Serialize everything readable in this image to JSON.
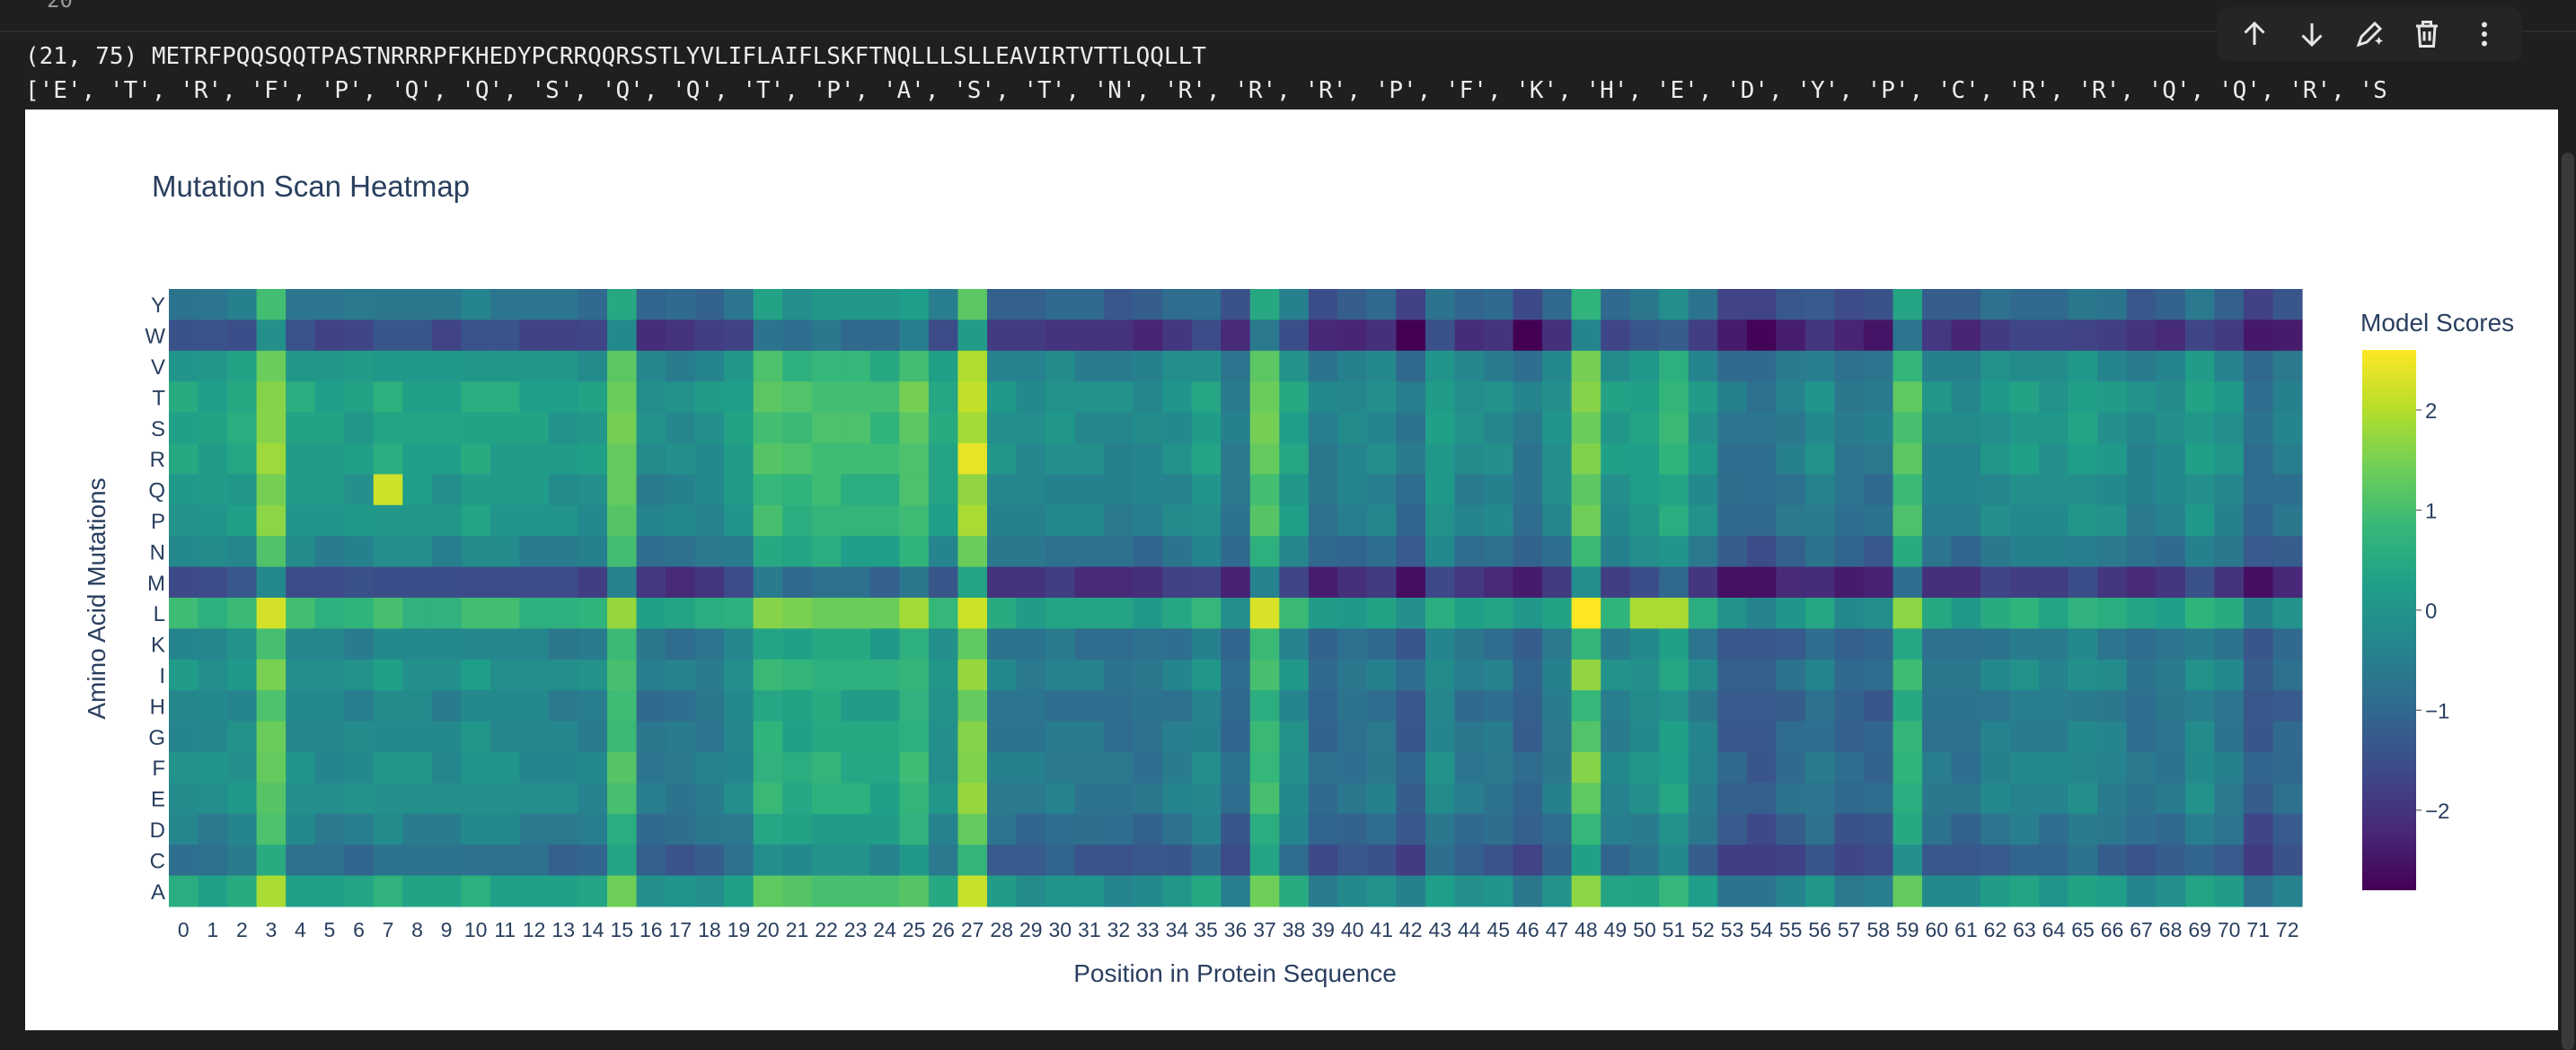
{
  "cell": {
    "execution_count": "20",
    "toolbar": [
      {
        "name": "move-up-button",
        "icon": "arrow-up-icon"
      },
      {
        "name": "move-down-button",
        "icon": "arrow-down-icon"
      },
      {
        "name": "edit-button",
        "icon": "pen-sparkle-icon"
      },
      {
        "name": "delete-button",
        "icon": "trash-icon"
      },
      {
        "name": "more-button",
        "icon": "kebab-menu-icon"
      }
    ]
  },
  "output": {
    "line1": "(21, 75) METRFPQQSQQTPASTNRRRPFKHEDYPCRRQQRSSTLYVLIFLAIFLSKFTNQLLLSLLEAVIRTVTTLQQLLT",
    "line2": "['E', 'T', 'R', 'F', 'P', 'Q', 'Q', 'S', 'Q', 'Q', 'T', 'P', 'A', 'S', 'T', 'N', 'R', 'R', 'R', 'P', 'F', 'K', 'H', 'E', 'D', 'Y', 'P', 'C', 'R', 'R', 'Q', 'Q', 'R', 'S"
  },
  "chart_data": {
    "type": "heatmap",
    "title": "Mutation Scan Heatmap",
    "xlabel": "Position in Protein Sequence",
    "ylabel": "Amino Acid Mutations",
    "colorbar_title": "Model Scores",
    "colorbar_ticks": [
      2,
      1,
      0,
      -1,
      -2
    ],
    "colorbar_range": [
      -2.8,
      2.6
    ],
    "colorscale": "viridis",
    "y_categories": [
      "Y",
      "W",
      "V",
      "T",
      "S",
      "R",
      "Q",
      "P",
      "N",
      "M",
      "L",
      "K",
      "I",
      "H",
      "G",
      "F",
      "E",
      "D",
      "C",
      "A"
    ],
    "x_categories": [
      "0",
      "1",
      "2",
      "3",
      "4",
      "5",
      "6",
      "7",
      "8",
      "9",
      "10",
      "11",
      "12",
      "13",
      "14",
      "15",
      "16",
      "17",
      "18",
      "19",
      "20",
      "21",
      "22",
      "23",
      "24",
      "25",
      "26",
      "27",
      "28",
      "29",
      "30",
      "31",
      "32",
      "33",
      "34",
      "35",
      "36",
      "37",
      "38",
      "39",
      "40",
      "41",
      "42",
      "43",
      "44",
      "45",
      "46",
      "47",
      "48",
      "49",
      "50",
      "51",
      "52",
      "53",
      "54",
      "55",
      "56",
      "57",
      "58",
      "59",
      "60",
      "61",
      "62",
      "63",
      "64",
      "65",
      "66",
      "67",
      "68",
      "69",
      "70",
      "71",
      "72"
    ],
    "column_base": [
      -0.2,
      -0.25,
      -0.1,
      1.2,
      -0.2,
      -0.3,
      -0.3,
      -0.1,
      -0.2,
      -0.3,
      -0.1,
      -0.2,
      -0.3,
      -0.4,
      -0.4,
      0.9,
      -0.7,
      -0.7,
      -0.6,
      -0.3,
      0.6,
      0.4,
      0.5,
      0.4,
      0.3,
      0.7,
      -0.1,
      1.5,
      -0.6,
      -0.7,
      -0.6,
      -0.7,
      -0.8,
      -0.8,
      -0.6,
      -0.3,
      -1.0,
      0.8,
      -0.2,
      -1.0,
      -0.8,
      -0.7,
      -1.2,
      -0.3,
      -0.7,
      -0.7,
      -1.1,
      -0.6,
      1.0,
      -0.4,
      -0.2,
      0.2,
      -0.5,
      -1.2,
      -1.3,
      -1.0,
      -0.7,
      -1.1,
      -1.1,
      0.6,
      -0.7,
      -0.8,
      -0.5,
      -0.4,
      -0.5,
      -0.3,
      -0.5,
      -0.8,
      -0.7,
      -0.3,
      -0.6,
      -1.3,
      -1.0
    ],
    "row_offset": [
      -0.4,
      -1.3,
      0.3,
      0.6,
      0.5,
      0.5,
      0.3,
      0.3,
      -0.1,
      -1.3,
      1.0,
      -0.1,
      0.2,
      -0.1,
      0.0,
      0.1,
      0.1,
      -0.2,
      -0.6,
      0.6
    ],
    "highlights": [
      {
        "x": "7",
        "y": "Q",
        "value": 2.2
      },
      {
        "x": "27",
        "y": "R",
        "value": 2.4
      },
      {
        "x": "27",
        "y": "L",
        "value": 2.2
      },
      {
        "x": "37",
        "y": "L",
        "value": 2.3
      },
      {
        "x": "48",
        "y": "L",
        "value": 2.6
      },
      {
        "x": "50",
        "y": "L",
        "value": 1.9
      },
      {
        "x": "51",
        "y": "L",
        "value": 1.9
      },
      {
        "x": "48",
        "y": "I",
        "value": 1.7
      },
      {
        "x": "48",
        "y": "F",
        "value": 1.6
      },
      {
        "x": "3",
        "y": "T",
        "value": 1.6
      },
      {
        "x": "42",
        "y": "W",
        "value": -2.8
      },
      {
        "x": "46",
        "y": "W",
        "value": -2.8
      },
      {
        "x": "46",
        "y": "M",
        "value": -2.4
      }
    ]
  }
}
